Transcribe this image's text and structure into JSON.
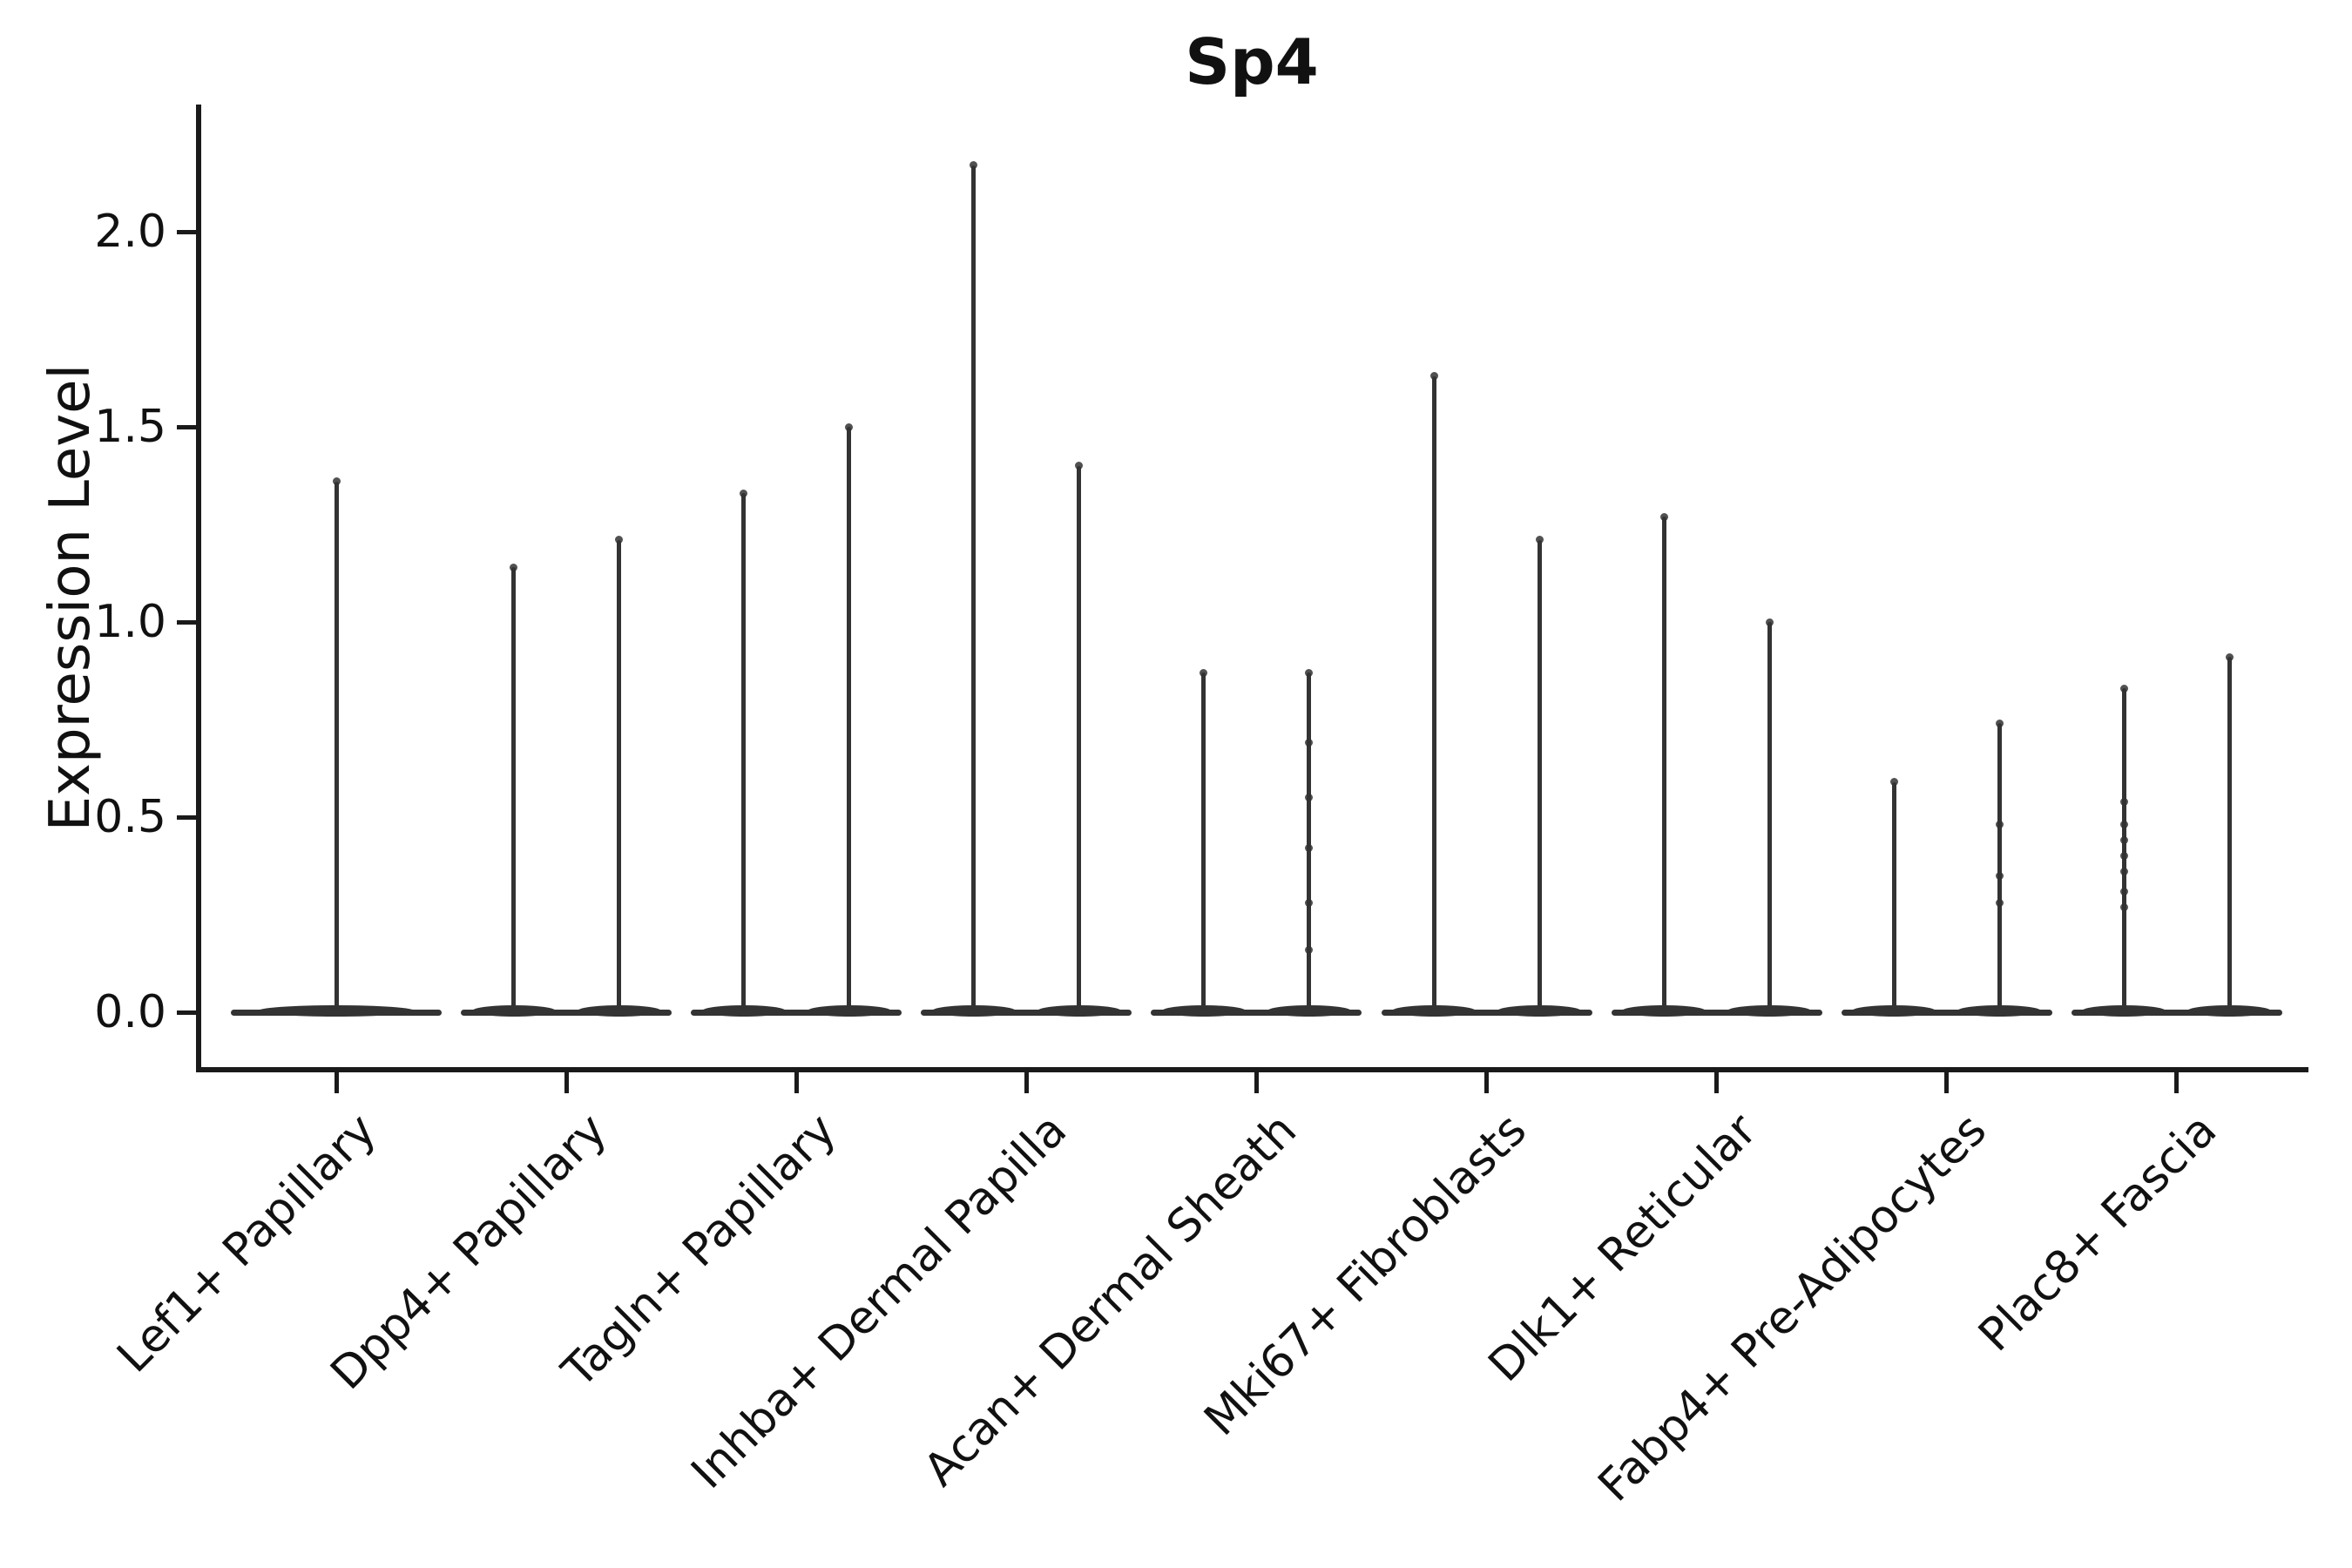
{
  "chart_data": {
    "type": "violin",
    "title": "Sp4",
    "ylabel": "Expression Level",
    "xlabel": "",
    "legend": null,
    "grid": false,
    "ylim": [
      0,
      2.33
    ],
    "y_tick_values": [
      0.0,
      0.5,
      1.0,
      1.5,
      2.0
    ],
    "y_ticks": [
      "0.0",
      "0.5",
      "1.0",
      "1.5",
      "2.0"
    ],
    "categories": [
      "Lef1+ Papillary",
      "Dpp4+ Papillary",
      "Tagln+ Papillary",
      "Inhba+ Dermal Papilla",
      "Acan+ Dermal Sheath",
      "Mki67+ Fibroblasts",
      "Dlk1+ Reticular",
      "Fabp4+ Pre-Adipocytes",
      "Plac8+ Fascia"
    ],
    "series": [
      {
        "category": "Lef1+ Papillary",
        "violins": [
          {
            "max": 1.36,
            "points": [
              1.36
            ]
          }
        ]
      },
      {
        "category": "Dpp4+ Papillary",
        "violins": [
          {
            "max": 1.14,
            "points": [
              1.14
            ]
          },
          {
            "max": 1.21,
            "points": [
              1.21
            ]
          }
        ]
      },
      {
        "category": "Tagln+ Papillary",
        "violins": [
          {
            "max": 1.33,
            "points": [
              1.33
            ]
          },
          {
            "max": 1.5,
            "points": [
              1.5
            ]
          }
        ]
      },
      {
        "category": "Inhba+ Dermal Papilla",
        "violins": [
          {
            "max": 2.17,
            "points": [
              2.17
            ]
          },
          {
            "max": 1.4,
            "points": [
              1.4
            ]
          }
        ]
      },
      {
        "category": "Acan+ Dermal Sheath",
        "violins": [
          {
            "max": 0.87,
            "points": [
              0.87
            ]
          },
          {
            "max": 0.87,
            "points": [
              0.87,
              0.69,
              0.55,
              0.42,
              0.28,
              0.16
            ]
          }
        ]
      },
      {
        "category": "Mki67+ Fibroblasts",
        "violins": [
          {
            "max": 1.63,
            "points": [
              1.63
            ]
          },
          {
            "max": 1.21,
            "points": [
              1.21
            ]
          }
        ]
      },
      {
        "category": "Dlk1+ Reticular",
        "violins": [
          {
            "max": 1.27,
            "points": [
              1.27
            ]
          },
          {
            "max": 1.0,
            "points": [
              1.0
            ]
          }
        ]
      },
      {
        "category": "Fabp4+ Pre-Adipocytes",
        "violins": [
          {
            "max": 0.59,
            "points": [
              0.59
            ]
          },
          {
            "max": 0.74,
            "points": [
              0.74,
              0.48,
              0.35,
              0.28
            ]
          }
        ]
      },
      {
        "category": "Plac8+ Fascia",
        "violins": [
          {
            "max": 0.83,
            "points": [
              0.83,
              0.54,
              0.48,
              0.44,
              0.4,
              0.36,
              0.31,
              0.27
            ]
          },
          {
            "max": 0.91,
            "points": [
              0.91
            ]
          }
        ]
      }
    ],
    "colors": {
      "violin": "#333333",
      "axis": "#1a1a1a",
      "text": "#111111",
      "background": "#ffffff"
    }
  }
}
